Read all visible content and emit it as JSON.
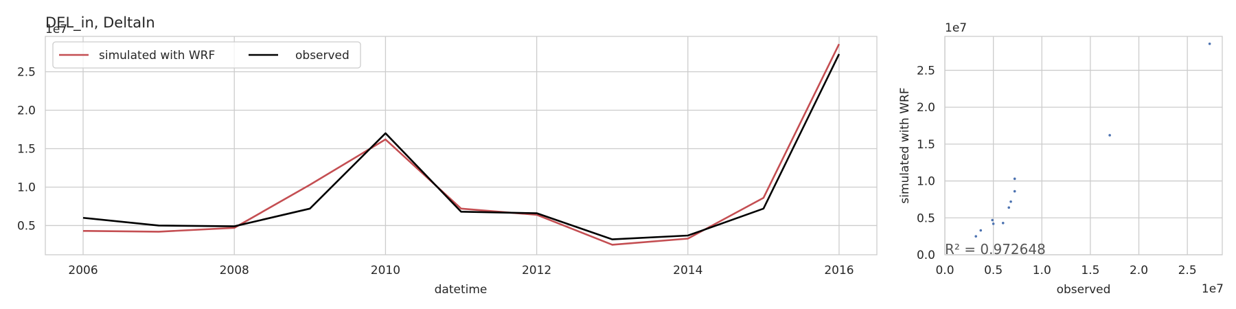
{
  "chart_data": [
    {
      "type": "line",
      "title": "DEL_in, DeltaIn",
      "xlabel": "datetime",
      "ylabel": "",
      "y_offset_label": "1e7",
      "x": [
        2006,
        2007,
        2008,
        2009,
        2010,
        2011,
        2012,
        2013,
        2014,
        2015,
        2016
      ],
      "xticks": [
        "2006",
        "2008",
        "2010",
        "2012",
        "2014",
        "2016"
      ],
      "yticks": [
        "0.5",
        "1.0",
        "1.5",
        "2.0",
        "2.5"
      ],
      "xlim": [
        2005.5,
        2016.5
      ],
      "ylim": [
        0.12,
        2.96
      ],
      "grid": true,
      "legend_position": "top-left",
      "series": [
        {
          "name": "simulated with WRF",
          "color": "#c44e52",
          "values": [
            0.43,
            0.42,
            0.47,
            1.03,
            1.62,
            0.72,
            0.64,
            0.25,
            0.33,
            0.86,
            2.86
          ]
        },
        {
          "name": "observed",
          "color": "#000000",
          "values": [
            0.6,
            0.5,
            0.49,
            0.72,
            1.7,
            0.68,
            0.66,
            0.32,
            0.37,
            0.72,
            2.73
          ]
        }
      ]
    },
    {
      "type": "scatter",
      "xlabel": "observed",
      "ylabel": "simulated with WRF",
      "x_offset_label": "1e7",
      "y_offset_label": "1e7",
      "xticks": [
        "0.0",
        "0.5",
        "1.0",
        "1.5",
        "2.0",
        "2.5"
      ],
      "yticks": [
        "0.0",
        "0.5",
        "1.0",
        "1.5",
        "2.0",
        "2.5"
      ],
      "xlim": [
        0,
        2.86
      ],
      "ylim": [
        0,
        2.96
      ],
      "grid": true,
      "annotation": "R² = 0.972648",
      "point_color": "#4c72b0",
      "points": [
        {
          "x": 0.6,
          "y": 0.43
        },
        {
          "x": 0.5,
          "y": 0.42
        },
        {
          "x": 0.49,
          "y": 0.47
        },
        {
          "x": 0.72,
          "y": 1.03
        },
        {
          "x": 1.7,
          "y": 1.62
        },
        {
          "x": 0.68,
          "y": 0.72
        },
        {
          "x": 0.66,
          "y": 0.64
        },
        {
          "x": 0.32,
          "y": 0.25
        },
        {
          "x": 0.37,
          "y": 0.33
        },
        {
          "x": 0.72,
          "y": 0.86
        },
        {
          "x": 2.73,
          "y": 2.86
        }
      ]
    }
  ]
}
